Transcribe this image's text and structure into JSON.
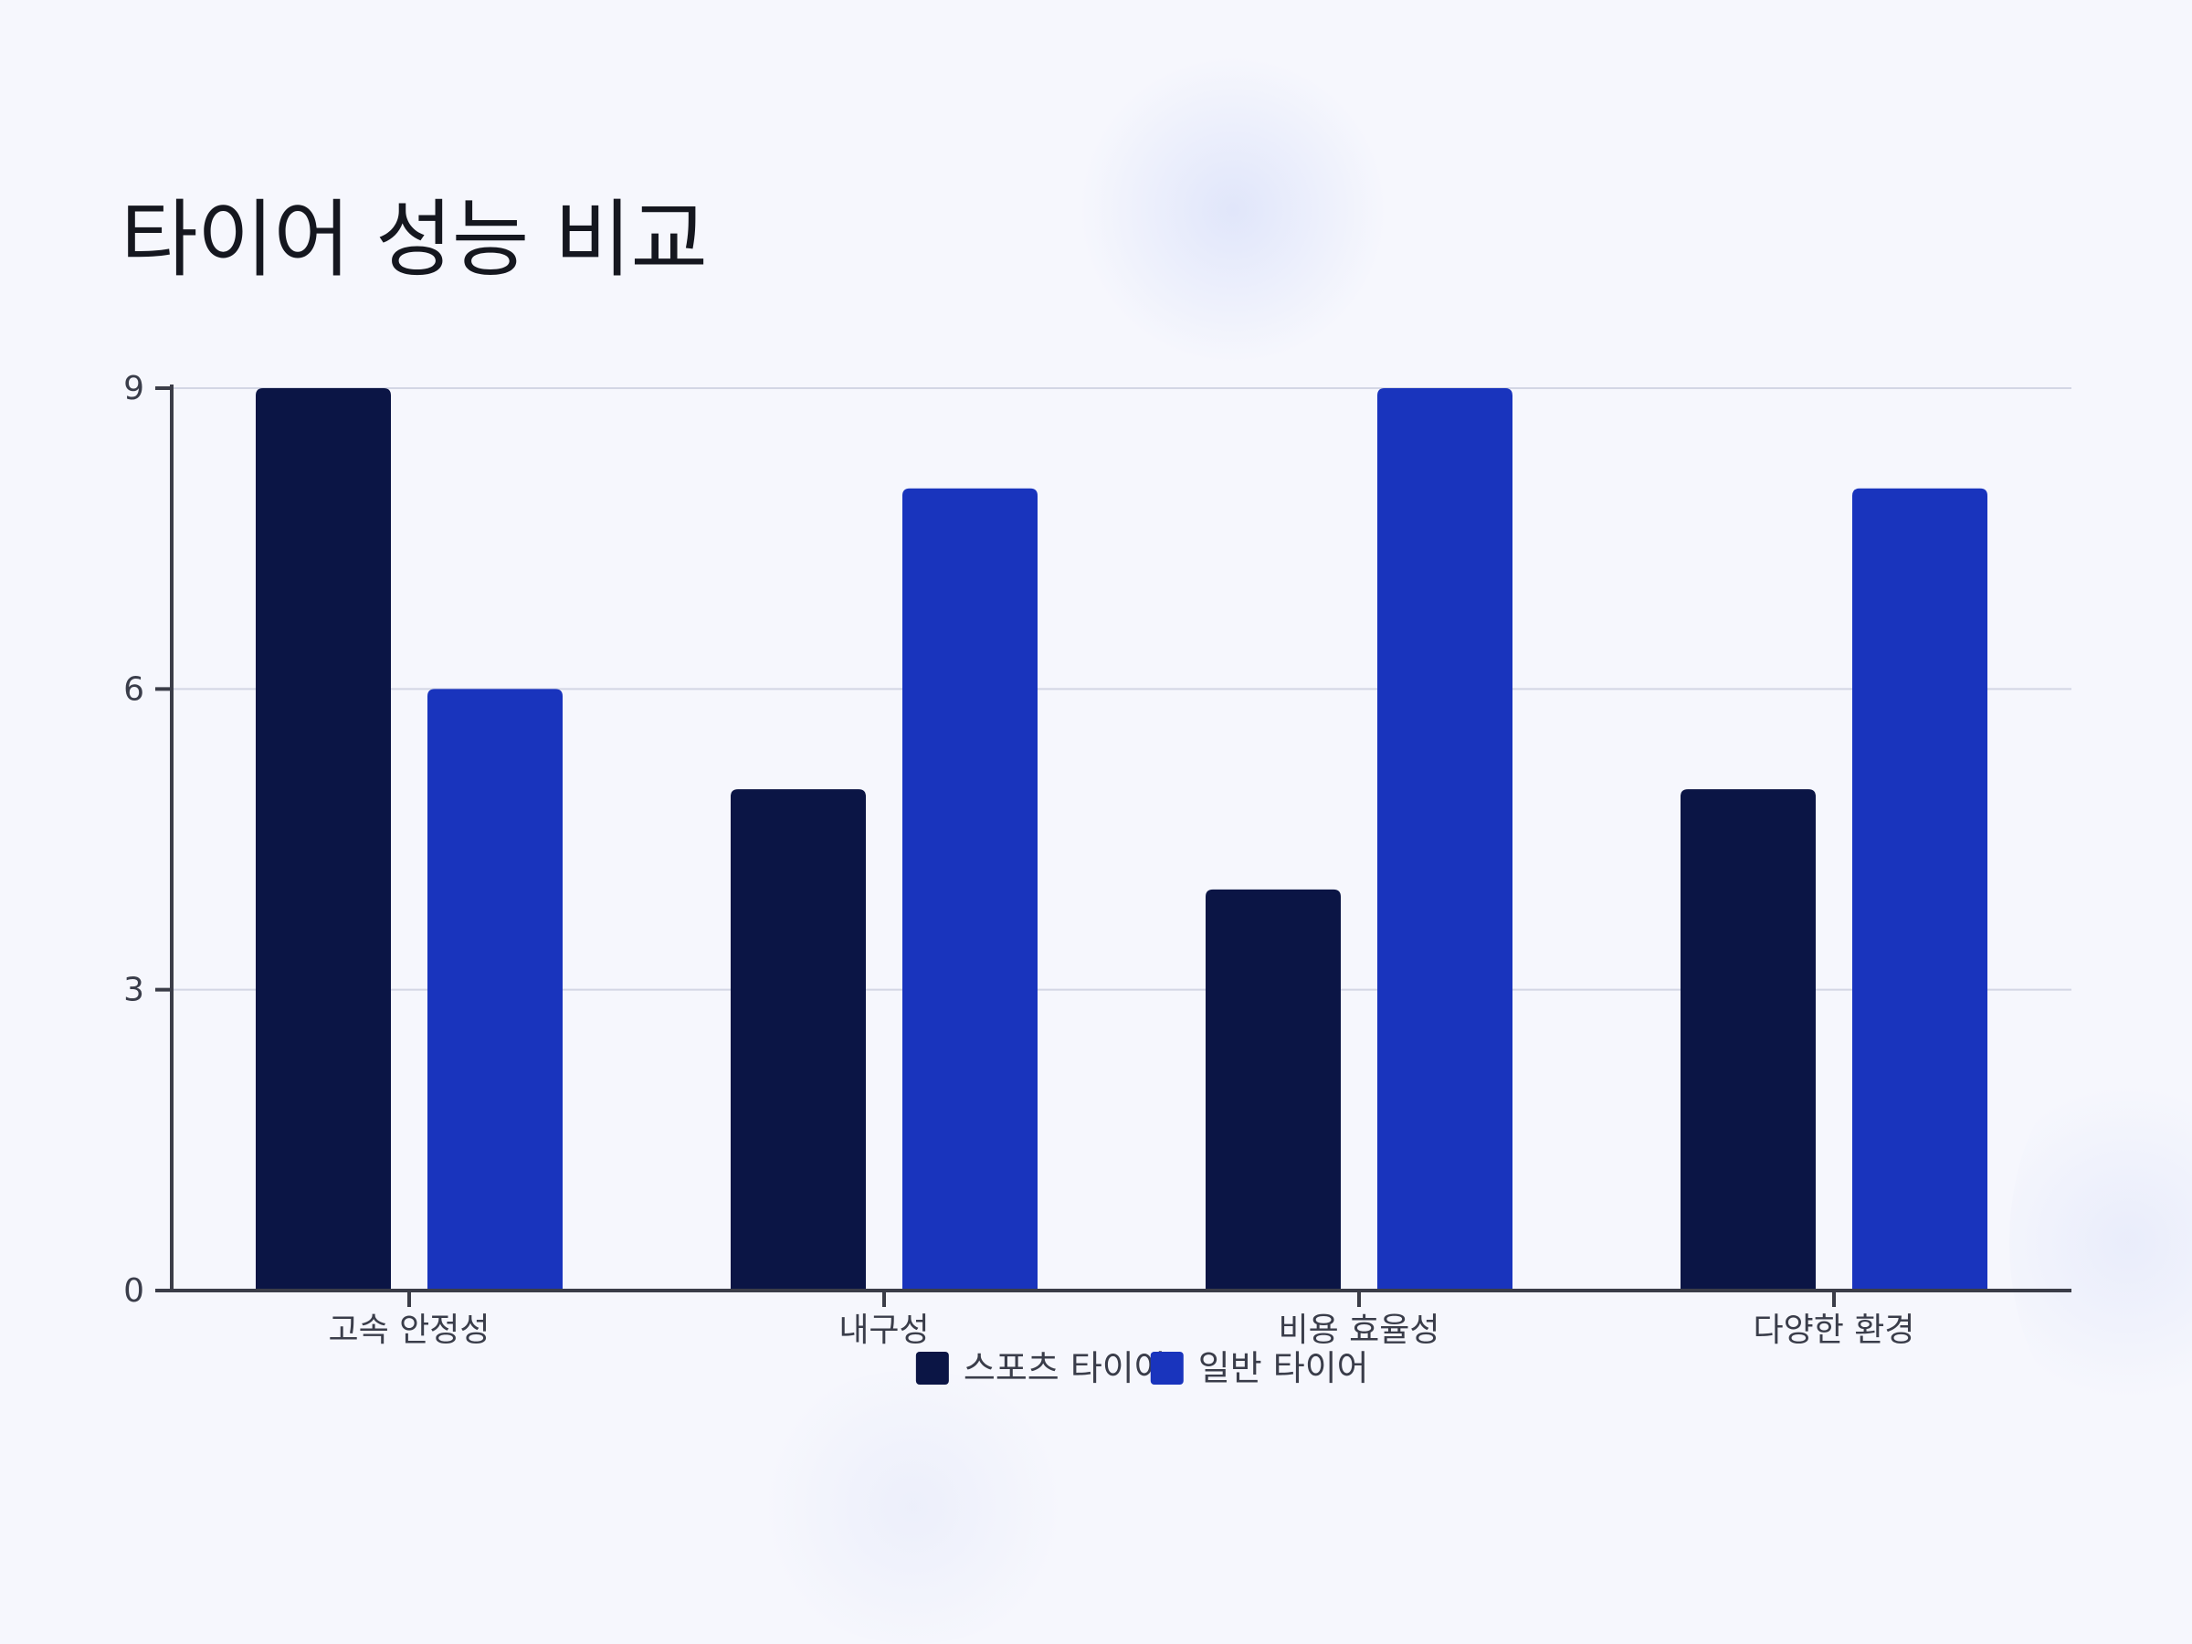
{
  "chart_data": {
    "type": "bar",
    "title": "타이어 성능 비교",
    "xlabel": "",
    "ylabel": "",
    "categories": [
      "고속 안정성",
      "내구성",
      "비용 효율성",
      "다양한 환경"
    ],
    "series": [
      {
        "name": "스포츠 타이어",
        "values": [
          9,
          5,
          4,
          5
        ],
        "color": "#0b1545"
      },
      {
        "name": "일반 타이어",
        "values": [
          6,
          8,
          9,
          8
        ],
        "color": "#1934bd"
      }
    ],
    "ylim": [
      0,
      9
    ],
    "yticks": [
      0,
      3,
      6,
      9
    ],
    "grid": true,
    "legend_position": "bottom-center"
  }
}
